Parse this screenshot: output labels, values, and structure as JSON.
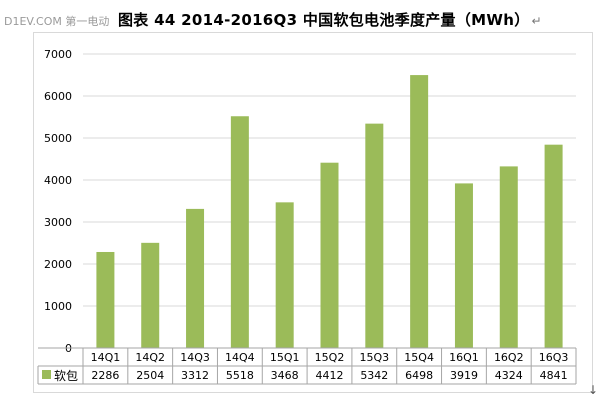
{
  "header": {
    "watermark": "D1EV.COM 第一电动",
    "title": "图表 44 2014-2016Q3 中国软包电池季度产量（MWh）",
    "para_mark": "↵"
  },
  "chart_data": {
    "type": "bar",
    "title": "图表 44 2014-2016Q3 中国软包电池季度产量（MWh）",
    "xlabel": "",
    "ylabel": "",
    "categories": [
      "14Q1",
      "14Q2",
      "14Q3",
      "14Q4",
      "15Q1",
      "15Q2",
      "15Q3",
      "15Q4",
      "16Q1",
      "16Q2",
      "16Q3"
    ],
    "series": [
      {
        "name": "软包",
        "values": [
          2286,
          2504,
          3312,
          5518,
          3468,
          4412,
          5342,
          6498,
          3919,
          4324,
          4841
        ]
      }
    ],
    "ylim": [
      0,
      7000
    ],
    "yticks": [
      0,
      1000,
      2000,
      3000,
      4000,
      5000,
      6000,
      7000
    ],
    "grid": true,
    "legend": "data-table",
    "bar_color": "#9bbb59",
    "grid_color": "#d9d9d9",
    "table_border_color": "#a6a6a6"
  }
}
